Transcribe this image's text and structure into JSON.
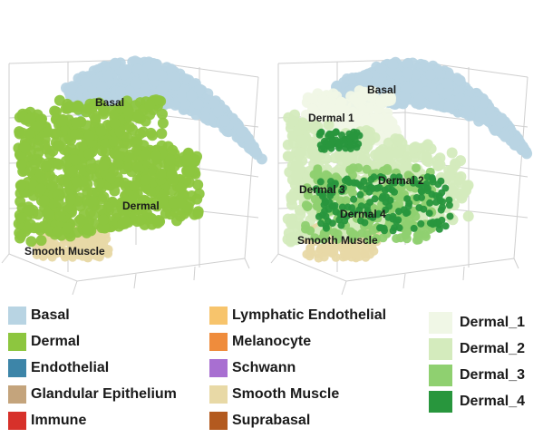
{
  "colors": {
    "basal": "#b8d4e3",
    "dermal": "#8dc63f",
    "endothelial": "#3d85a8",
    "glandular": "#c4a47c",
    "immune": "#d7312a",
    "lymphatic": "#f7c46c",
    "melanocyte": "#ef8c3c",
    "schwann": "#a86fd1",
    "smooth_muscle": "#e8d9a6",
    "suprabasal": "#b35a1f",
    "dermal_1": "#f0f7e6",
    "dermal_2": "#d4ebbd",
    "dermal_3": "#8fd070",
    "dermal_4": "#28963d"
  },
  "chart_data": [
    {
      "type": "scatter",
      "panel": "left",
      "labels": [
        "Basal",
        "Dermal",
        "Smooth Muscle"
      ],
      "series": [
        {
          "name": "Basal",
          "color": "#b8d4e3"
        },
        {
          "name": "Dermal",
          "color": "#8dc63f"
        },
        {
          "name": "Smooth Muscle",
          "color": "#e8d9a6"
        }
      ]
    },
    {
      "type": "scatter",
      "panel": "right",
      "labels": [
        "Basal",
        "Dermal 1",
        "Dermal 2",
        "Dermal 3",
        "Dermal 4",
        "Smooth Muscle"
      ],
      "series": [
        {
          "name": "Basal",
          "color": "#b8d4e3"
        },
        {
          "name": "Dermal_1",
          "color": "#f0f7e6"
        },
        {
          "name": "Dermal_2",
          "color": "#d4ebbd"
        },
        {
          "name": "Dermal_3",
          "color": "#8fd070"
        },
        {
          "name": "Dermal_4",
          "color": "#28963d"
        },
        {
          "name": "Smooth Muscle",
          "color": "#e8d9a6"
        }
      ]
    }
  ],
  "legend_a_col1": [
    {
      "label": "Basal",
      "color": "#b8d4e3"
    },
    {
      "label": "Dermal",
      "color": "#8dc63f"
    },
    {
      "label": "Endothelial",
      "color": "#3d85a8"
    },
    {
      "label": "Glandular Epithelium",
      "color": "#c4a47c"
    },
    {
      "label": "Immune",
      "color": "#d7312a"
    }
  ],
  "legend_a_col2": [
    {
      "label": "Lymphatic Endothelial",
      "color": "#f7c46c"
    },
    {
      "label": "Melanocyte",
      "color": "#ef8c3c"
    },
    {
      "label": "Schwann",
      "color": "#a86fd1"
    },
    {
      "label": "Smooth Muscle",
      "color": "#e8d9a6"
    },
    {
      "label": "Suprabasal",
      "color": "#b35a1f"
    }
  ],
  "legend_b": [
    {
      "label": "Dermal_1",
      "color": "#f0f7e6"
    },
    {
      "label": "Dermal_2",
      "color": "#d4ebbd"
    },
    {
      "label": "Dermal_3",
      "color": "#8fd070"
    },
    {
      "label": "Dermal_4",
      "color": "#28963d"
    }
  ]
}
